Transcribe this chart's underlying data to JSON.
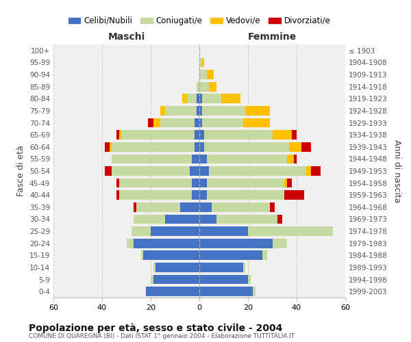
{
  "age_groups": [
    "0-4",
    "5-9",
    "10-14",
    "15-19",
    "20-24",
    "25-29",
    "30-34",
    "35-39",
    "40-44",
    "45-49",
    "50-54",
    "55-59",
    "60-64",
    "65-69",
    "70-74",
    "75-79",
    "80-84",
    "85-89",
    "90-94",
    "95-99",
    "100+"
  ],
  "birth_years": [
    "1999-2003",
    "1994-1998",
    "1989-1993",
    "1984-1988",
    "1979-1983",
    "1974-1978",
    "1969-1973",
    "1964-1968",
    "1959-1963",
    "1954-1958",
    "1949-1953",
    "1944-1948",
    "1939-1943",
    "1934-1938",
    "1929-1933",
    "1924-1928",
    "1919-1923",
    "1914-1918",
    "1909-1913",
    "1904-1908",
    "≤ 1903"
  ],
  "colors": {
    "celibi": "#4472c4",
    "coniugati": "#c5d9a0",
    "vedovi": "#ffc000",
    "divorziati": "#cc0000"
  },
  "maschi": {
    "celibi": [
      22,
      19,
      18,
      23,
      27,
      20,
      14,
      8,
      3,
      3,
      4,
      3,
      2,
      2,
      2,
      1,
      1,
      0,
      0,
      0,
      0
    ],
    "coniugati": [
      0,
      1,
      1,
      1,
      3,
      8,
      13,
      18,
      30,
      30,
      32,
      33,
      34,
      30,
      14,
      13,
      4,
      1,
      0,
      0,
      0
    ],
    "vedovi": [
      0,
      0,
      0,
      0,
      0,
      0,
      0,
      0,
      0,
      0,
      0,
      0,
      1,
      1,
      3,
      2,
      2,
      0,
      0,
      0,
      0
    ],
    "divorziati": [
      0,
      0,
      0,
      0,
      0,
      0,
      0,
      1,
      1,
      1,
      3,
      0,
      2,
      1,
      2,
      0,
      0,
      0,
      0,
      0,
      0
    ]
  },
  "femmine": {
    "celibi": [
      22,
      20,
      18,
      26,
      30,
      20,
      7,
      5,
      3,
      3,
      4,
      3,
      2,
      2,
      1,
      1,
      1,
      0,
      0,
      0,
      0
    ],
    "coniugati": [
      1,
      1,
      1,
      2,
      6,
      35,
      25,
      24,
      32,
      32,
      40,
      33,
      35,
      28,
      17,
      18,
      8,
      4,
      3,
      1,
      0
    ],
    "vedovi": [
      0,
      0,
      0,
      0,
      0,
      0,
      0,
      0,
      0,
      1,
      2,
      3,
      5,
      8,
      11,
      10,
      8,
      3,
      3,
      1,
      0
    ],
    "divorziati": [
      0,
      0,
      0,
      0,
      0,
      0,
      2,
      2,
      8,
      2,
      4,
      1,
      4,
      2,
      0,
      0,
      0,
      0,
      0,
      0,
      0
    ]
  },
  "xlim": 60,
  "title": "Popolazione per età, sesso e stato civile - 2004",
  "subtitle": "COMUNE DI QUAREGNA (BI) - Dati ISTAT 1° gennaio 2004 - Elaborazione TUTTITALIA.IT",
  "ylabel_left": "Fasce di età",
  "ylabel_right": "Anni di nascita",
  "xlabel_left": "Maschi",
  "xlabel_right": "Femmine",
  "background_color": "#ffffff",
  "plot_bg": "#f0f0f0",
  "grid_color": "#cccccc"
}
